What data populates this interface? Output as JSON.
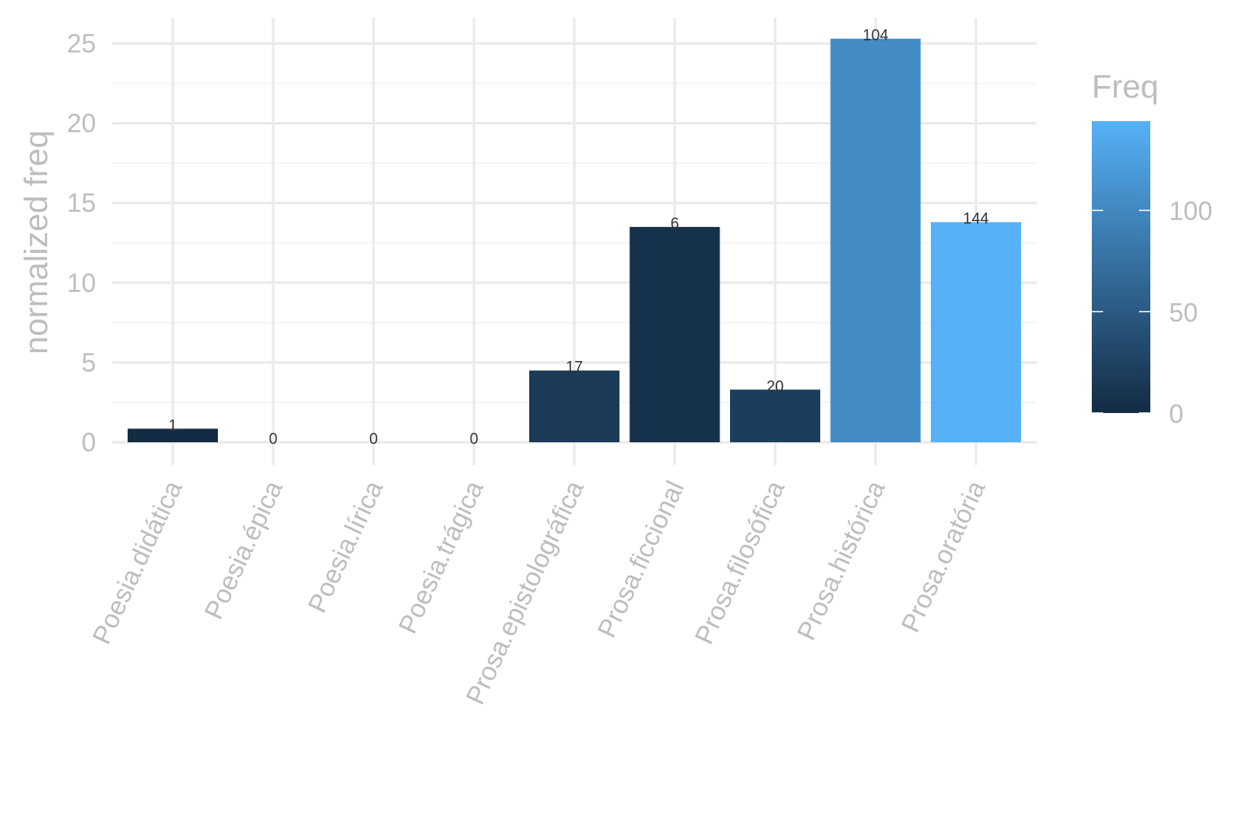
{
  "chart_data": {
    "type": "bar",
    "title": "",
    "xlabel": "",
    "ylabel": "normalized freq",
    "categories": [
      "Poesia.didática",
      "Poesia.épica",
      "Poesia.lírica",
      "Poesia.trágica",
      "Prosa.epistolográfica",
      "Prosa.ficcional",
      "Prosa.filosófica",
      "Prosa.histórica",
      "Prosa.oratória"
    ],
    "values": [
      0.85,
      0,
      0,
      0,
      4.5,
      13.5,
      3.3,
      25.3,
      13.8
    ],
    "freq": [
      1,
      0,
      0,
      0,
      17,
      6,
      20,
      104,
      144
    ],
    "data_labels": [
      "1",
      "0",
      "0",
      "0",
      "17",
      "6",
      "20",
      "104",
      "144"
    ],
    "ylim": [
      0,
      25.5
    ],
    "y_ticks": [
      0,
      5,
      10,
      15,
      20,
      25
    ],
    "y_tick_labels": [
      "0",
      "5",
      "10",
      "15",
      "20",
      "25"
    ],
    "grid": true,
    "legend": {
      "title": "Freq",
      "position": "right",
      "type": "colorbar",
      "range": [
        0,
        144
      ],
      "ticks": [
        0,
        50,
        100
      ],
      "tick_labels": [
        "0",
        "50",
        "100"
      ],
      "color_low": "#132B43",
      "color_high": "#56B1F7"
    }
  }
}
